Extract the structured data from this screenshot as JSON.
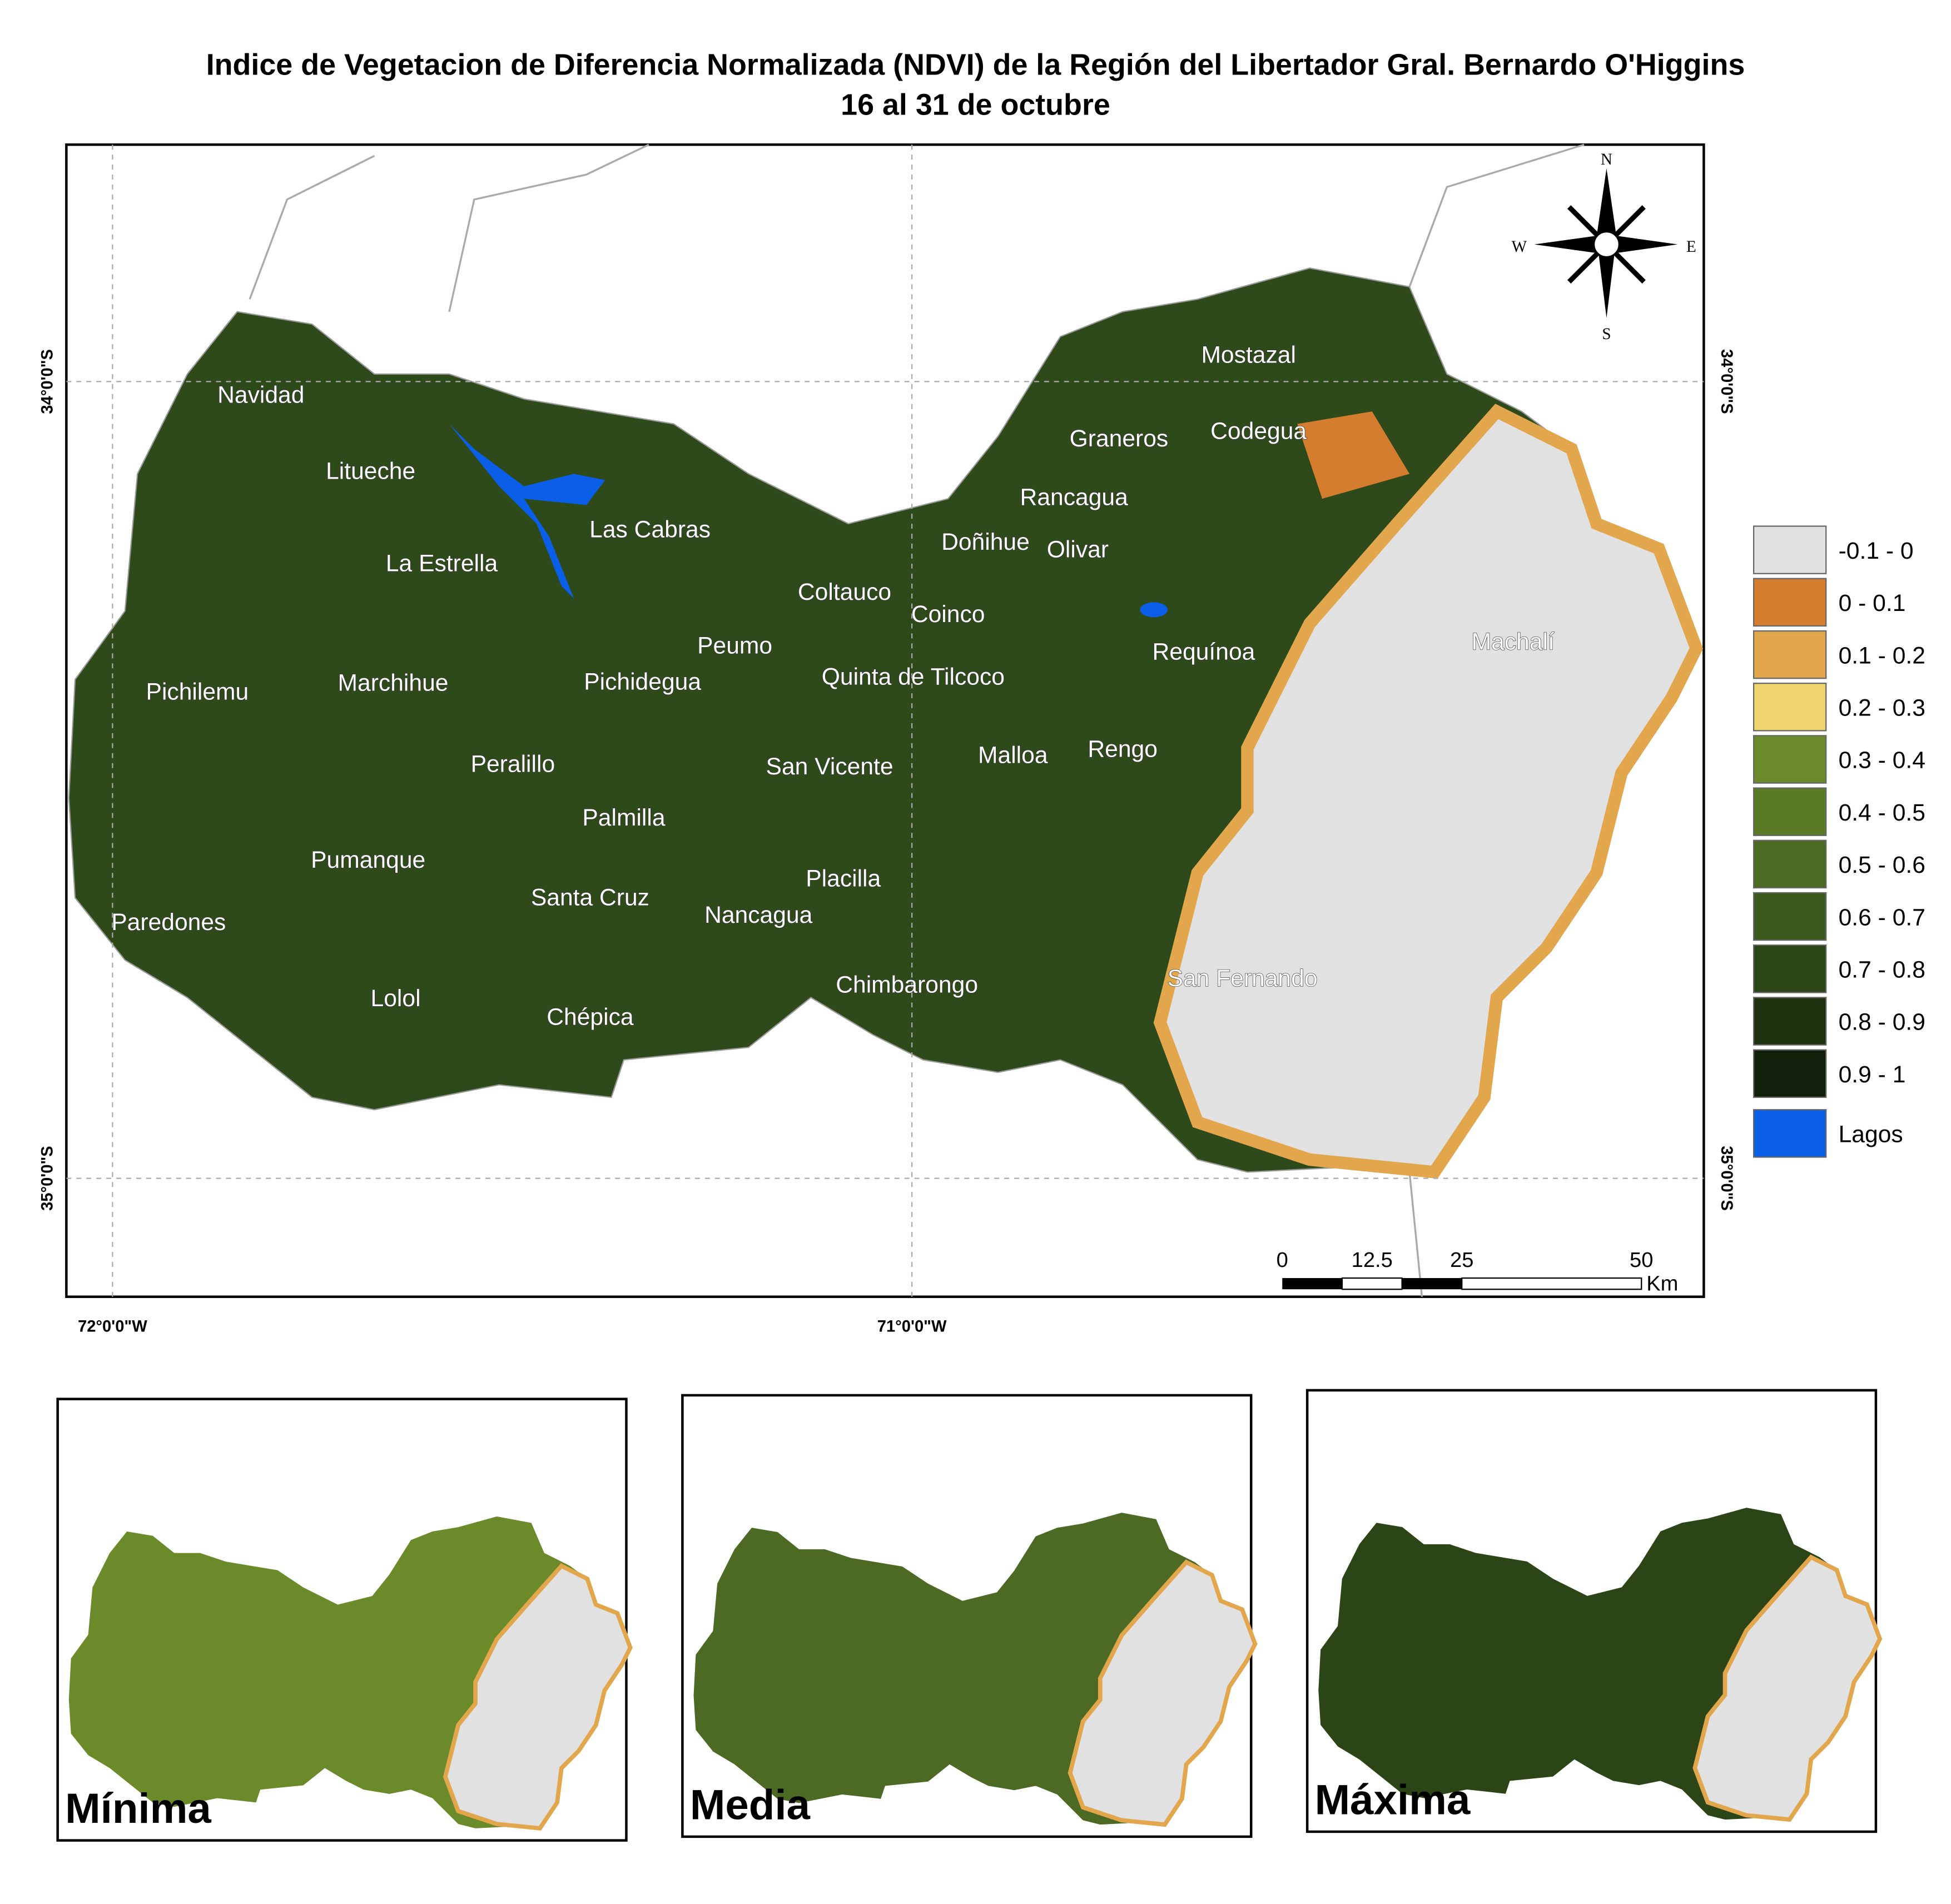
{
  "title": {
    "line1": "Indice de Vegetacion de Diferencia Normalizada (NDVI) de la Región del Libertador Gral. Bernardo O'Higgins",
    "line2": "16 al 31 de octubre"
  },
  "map": {
    "places": [
      "Navidad",
      "Litueche",
      "Las Cabras",
      "La Estrella",
      "Pichilemu",
      "Marchihue",
      "Pichidegua",
      "Peumo",
      "Coltauco",
      "Coinco",
      "Doñihue",
      "Olivar",
      "Rancagua",
      "Graneros",
      "Codegua",
      "Mostazal",
      "Requínoa",
      "Machalí",
      "Quinta de Tilcoco",
      "San Vicente",
      "Malloa",
      "Rengo",
      "Peralillo",
      "Palmilla",
      "Pumanque",
      "Santa Cruz",
      "Placilla",
      "Nancagua",
      "Paredones",
      "Chimbarongo",
      "San Fernando",
      "Lolol",
      "Chépica"
    ],
    "lat_labels": [
      "34°0'0\"S",
      "35°0'0\"S"
    ],
    "lon_labels": [
      "72°0'0\"W",
      "71°0'0\"W"
    ],
    "compass": {
      "north": "N",
      "south": "S",
      "east": "E",
      "west": "W"
    },
    "scale": {
      "ticks": [
        0,
        12.5,
        25,
        50
      ],
      "unit": "Km"
    }
  },
  "legend": [
    {
      "label": "-0.1 - 0",
      "color": "#e1e1e1"
    },
    {
      "label": "0 - 0.1",
      "color": "#d47d2f"
    },
    {
      "label": "0.1 - 0.2",
      "color": "#e2a64c"
    },
    {
      "label": "0.2 - 0.3",
      "color": "#efd36d"
    },
    {
      "label": "0.3 - 0.4",
      "color": "#6b8a2a"
    },
    {
      "label": "0.4 - 0.5",
      "color": "#5a7a26"
    },
    {
      "label": "0.5 - 0.6",
      "color": "#4c6a24"
    },
    {
      "label": "0.6 - 0.7",
      "color": "#3d5a1e"
    },
    {
      "label": "0.7 - 0.8",
      "color": "#2c4516"
    },
    {
      "label": "0.8 - 0.9",
      "color": "#1e3210"
    },
    {
      "label": "0.9 - 1",
      "color": "#10200a"
    },
    {
      "label": "Lagos",
      "color": "#0a5ee8"
    }
  ],
  "insets": [
    "Mínima",
    "Media",
    "Máxima"
  ]
}
